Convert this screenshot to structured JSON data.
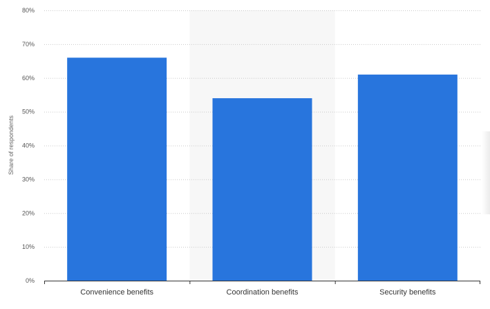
{
  "chart_data": {
    "type": "bar",
    "categories": [
      "Convenience benefits",
      "Coordination benefits",
      "Security benefits"
    ],
    "values": [
      66,
      54,
      61
    ],
    "ylabel": "Share of respondents",
    "xlabel": "",
    "ylim": [
      0,
      80
    ],
    "yticks": [
      0,
      10,
      20,
      30,
      40,
      50,
      60,
      70,
      80
    ],
    "tick_suffix": "%",
    "grid": true,
    "highlighted_category_index": 1,
    "colors": {
      "bar": "#2875dd",
      "highlight_band": "#f7f7f7",
      "grid": "#c8c8c8",
      "axis": "#333333",
      "tick_text": "#555555",
      "category_text": "#333333"
    }
  }
}
